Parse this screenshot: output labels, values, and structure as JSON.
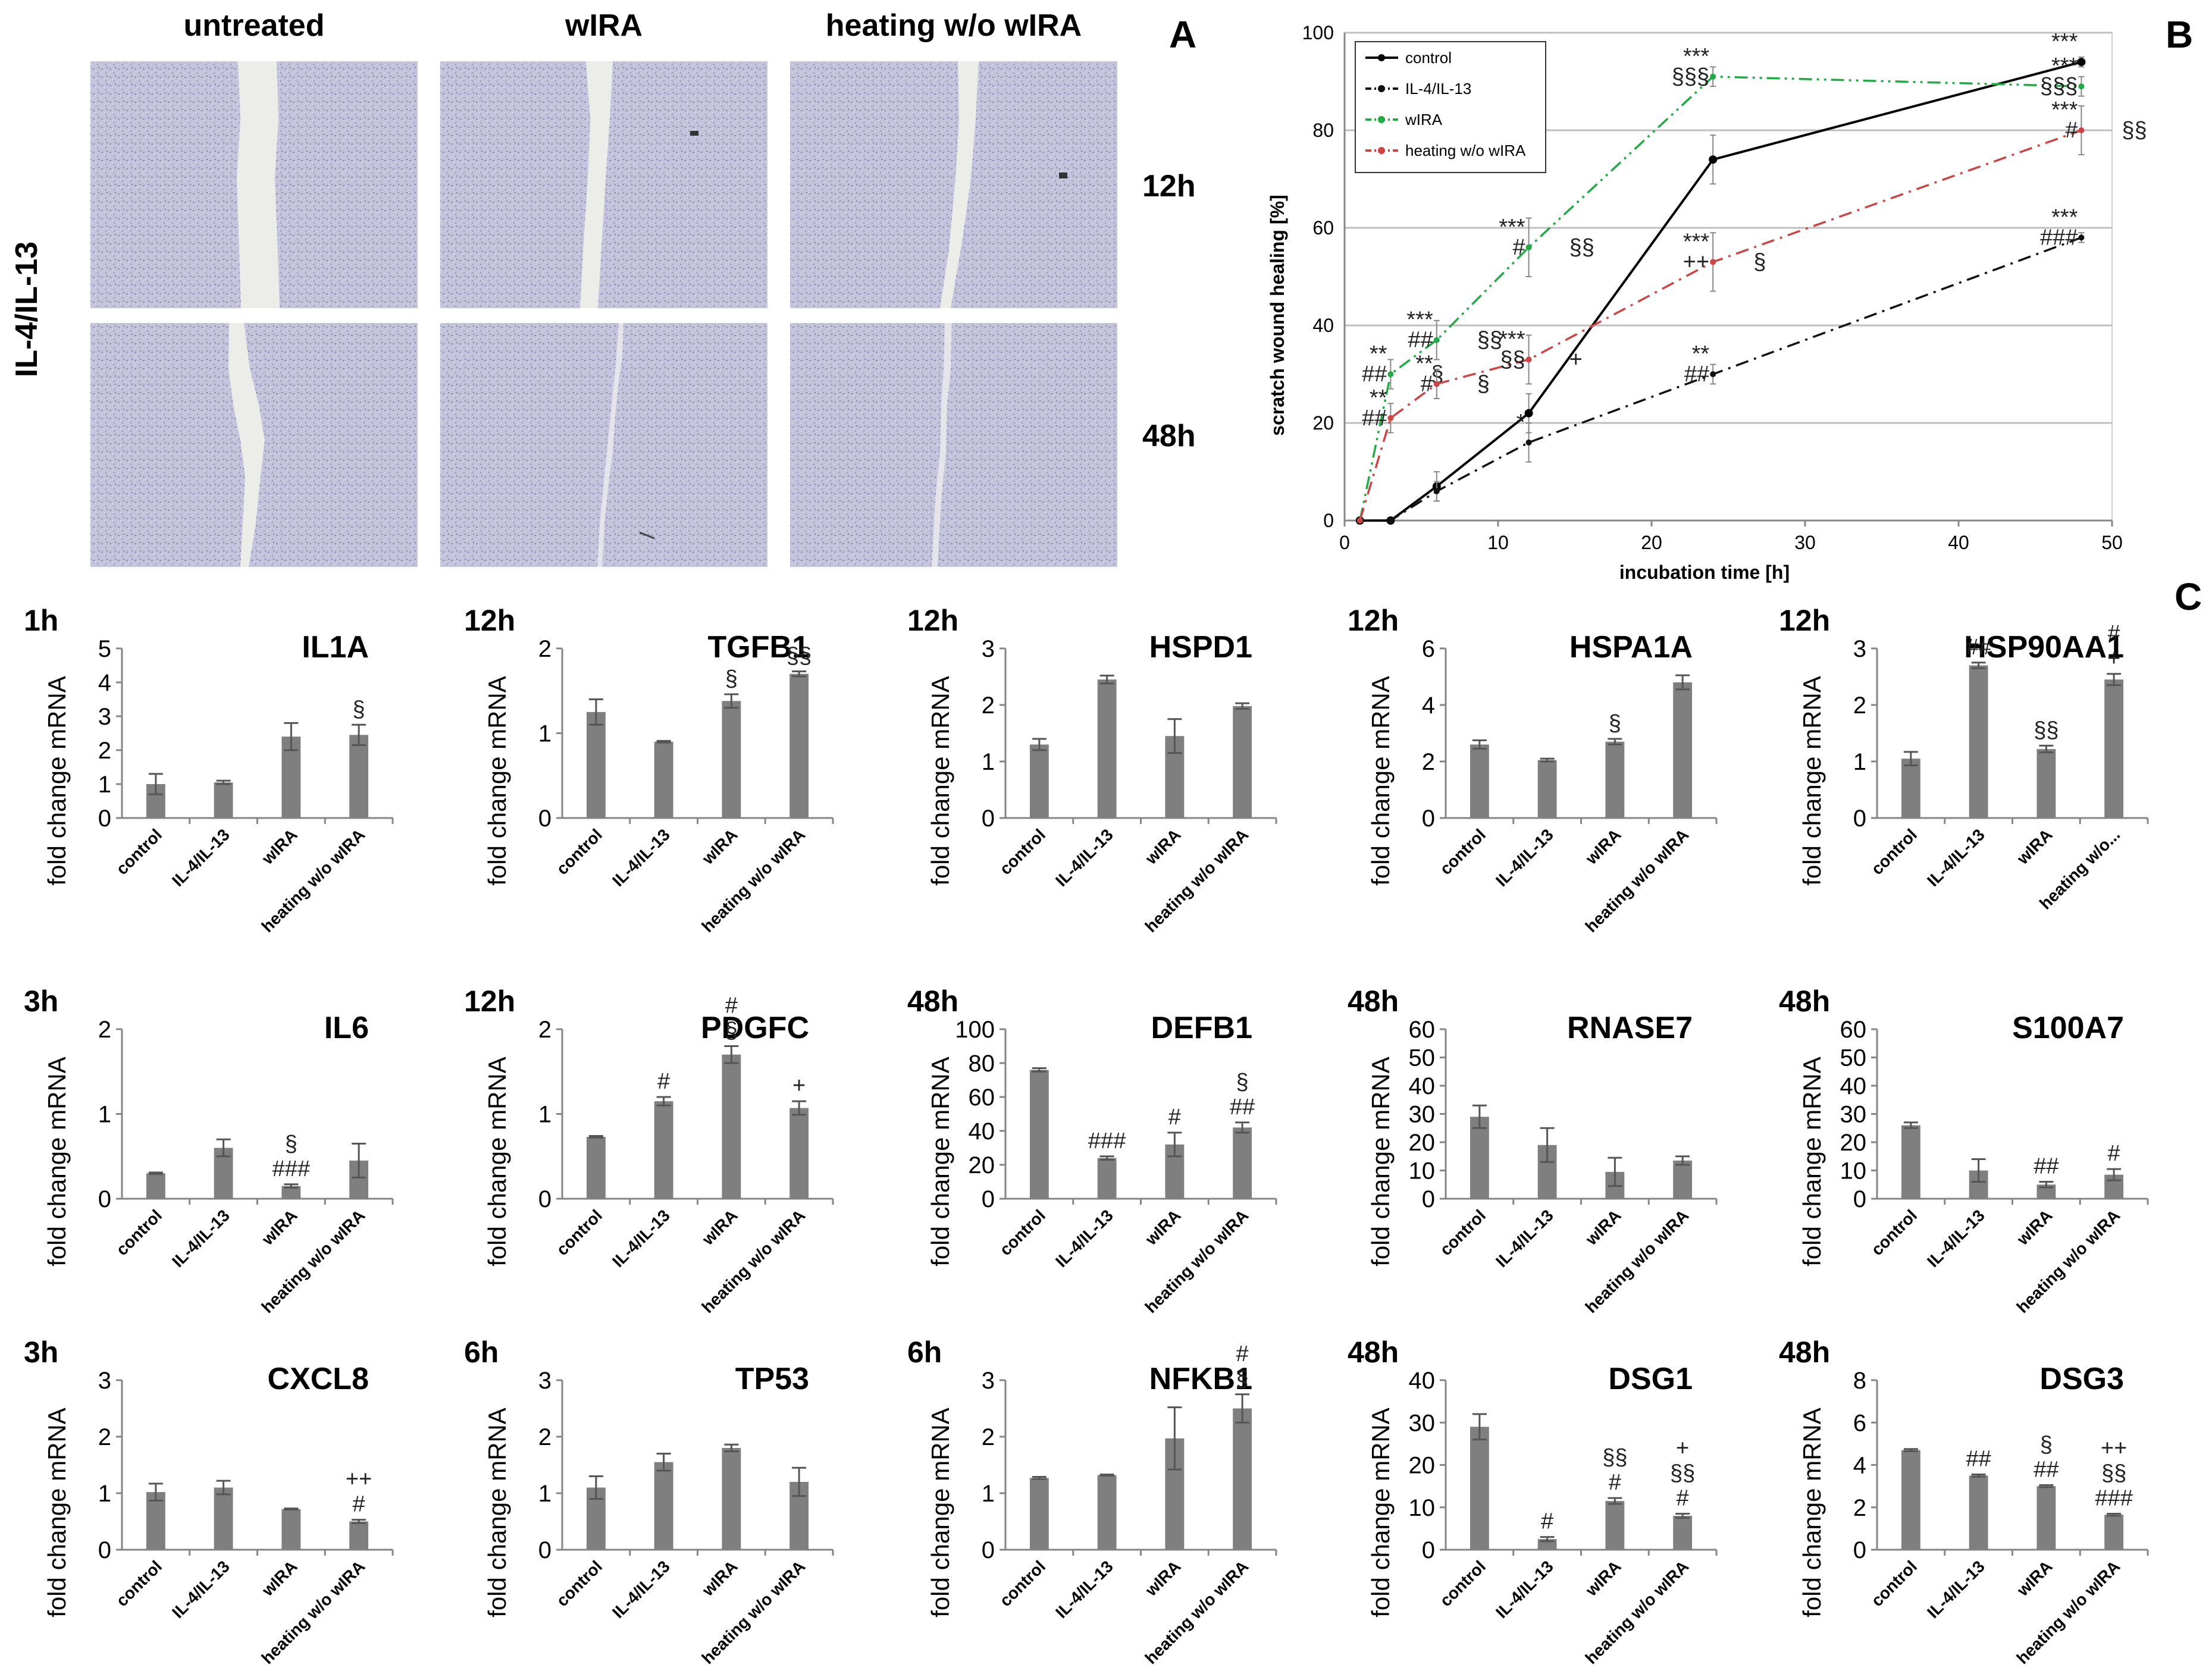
{
  "panel_a": {
    "label": "A",
    "row_title": "IL-4/IL-13",
    "columns": [
      "untreated",
      "wIRA",
      "heating w/o wIRA"
    ],
    "rows": [
      "12h",
      "48h"
    ]
  },
  "chart_data": [
    {
      "panel": "B",
      "type": "line",
      "title": "",
      "xlabel": "incubation time [h]",
      "ylabel": "scratch wound healing [%]",
      "xlim": [
        0,
        50
      ],
      "ylim": [
        0,
        100
      ],
      "xticks": [
        0,
        10,
        20,
        30,
        40,
        50
      ],
      "yticks": [
        0,
        20,
        40,
        60,
        80,
        100
      ],
      "grid": "horizontal",
      "legend": "top-left",
      "series": [
        {
          "name": "control",
          "color": "#000000",
          "dash": "solid",
          "marker": "circle",
          "x": [
            1,
            3,
            6,
            12,
            24,
            48
          ],
          "y": [
            0,
            0,
            7,
            22,
            74,
            94
          ],
          "err": [
            0,
            0,
            3,
            4,
            5,
            1
          ],
          "annotations": [
            [
              "48",
              "***"
            ]
          ]
        },
        {
          "name": "IL-4/IL-13",
          "color": "#111111",
          "dash": "dashdot",
          "marker": "diamond",
          "x": [
            1,
            3,
            6,
            12,
            24,
            48
          ],
          "y": [
            0,
            0,
            6,
            16,
            30,
            58
          ],
          "err": [
            0,
            0,
            2,
            4,
            2,
            1
          ],
          "annotations": [
            [
              "12",
              "*"
            ],
            [
              "24",
              "** ##"
            ],
            [
              "48",
              "*** ###"
            ]
          ]
        },
        {
          "name": "wIRA",
          "color": "#22aa44",
          "dash": "dashdotdot",
          "marker": "diamond",
          "x": [
            1,
            3,
            6,
            12,
            24,
            48
          ],
          "y": [
            0,
            30,
            37,
            56,
            91,
            89
          ],
          "err": [
            0,
            3,
            4,
            6,
            2,
            2
          ],
          "annotations": [
            [
              "3",
              "** ## §"
            ],
            [
              "6",
              "*** ## §§"
            ],
            [
              "12",
              "*** # §§"
            ],
            [
              "24",
              "*** §§§"
            ],
            [
              "48",
              "*** §§§"
            ]
          ]
        },
        {
          "name": "heating w/o wIRA",
          "color": "#cc4444",
          "dash": "dashdot",
          "marker": "diamond",
          "x": [
            1,
            3,
            6,
            12,
            24,
            48
          ],
          "y": [
            0,
            21,
            28,
            33,
            53,
            80
          ],
          "err": [
            0,
            3,
            3,
            5,
            6,
            5
          ],
          "annotations": [
            [
              "3",
              "** ##"
            ],
            [
              "6",
              "** # §"
            ],
            [
              "12",
              "*** §§ +"
            ],
            [
              "24",
              "*** ++ §"
            ],
            [
              "48",
              "*** # §§"
            ]
          ]
        }
      ]
    },
    {
      "type": "bar",
      "panel": "C",
      "time": "1h",
      "gene": "IL1A",
      "ylabel": "fold change mRNA",
      "categories": [
        "control",
        "IL-4/IL-13",
        "wIRA",
        "heating w/o wIRA"
      ],
      "values": [
        1.0,
        1.05,
        2.4,
        2.45
      ],
      "errors": [
        0.3,
        0.05,
        0.4,
        0.3
      ],
      "ylim": [
        0,
        5
      ],
      "yticks": [
        0,
        1,
        2,
        3,
        4,
        5
      ],
      "annotations": [
        "",
        "",
        "",
        "§"
      ]
    },
    {
      "type": "bar",
      "panel": "C",
      "time": "12h",
      "gene": "TGFB1",
      "ylabel": "fold change mRNA",
      "categories": [
        "control",
        "IL-4/IL-13",
        "wIRA",
        "heating w/o wIRA"
      ],
      "values": [
        1.25,
        0.9,
        1.38,
        1.7
      ],
      "errors": [
        0.15,
        0.01,
        0.08,
        0.03
      ],
      "ylim": [
        0,
        2
      ],
      "yticks": [
        0,
        1,
        2
      ],
      "annotations": [
        "",
        "",
        "§",
        "§§"
      ]
    },
    {
      "type": "bar",
      "panel": "C",
      "time": "12h",
      "gene": "HSPD1",
      "ylabel": "fold change mRNA",
      "categories": [
        "control",
        "IL-4/IL-13",
        "wIRA",
        "heating w/o wIRA"
      ],
      "values": [
        1.3,
        2.45,
        1.45,
        1.98
      ],
      "errors": [
        0.1,
        0.07,
        0.3,
        0.05
      ],
      "ylim": [
        0,
        3
      ],
      "yticks": [
        0,
        1,
        2,
        3
      ],
      "annotations": [
        "",
        "",
        "",
        ""
      ]
    },
    {
      "type": "bar",
      "panel": "C",
      "time": "12h",
      "gene": "HSPA1A",
      "ylabel": "fold change mRNA",
      "categories": [
        "control",
        "IL-4/IL-13",
        "wIRA",
        "heating w/o wIRA"
      ],
      "values": [
        2.6,
        2.05,
        2.7,
        4.8
      ],
      "errors": [
        0.15,
        0.05,
        0.1,
        0.25
      ],
      "ylim": [
        0,
        6
      ],
      "yticks": [
        0,
        2,
        4,
        6
      ],
      "annotations": [
        "",
        "",
        "§",
        ""
      ]
    },
    {
      "type": "bar",
      "panel": "C",
      "time": "12h",
      "gene": "HSP90AA1",
      "ylabel": "fold change mRNA",
      "categories": [
        "control",
        "IL-4/IL-13",
        "wIRA",
        "heating w/o..."
      ],
      "values": [
        1.05,
        2.7,
        1.22,
        2.45
      ],
      "errors": [
        0.12,
        0.05,
        0.06,
        0.1
      ],
      "ylim": [
        0,
        3
      ],
      "yticks": [
        0,
        1,
        2,
        3
      ],
      "annotations": [
        "",
        "##",
        "§§",
        "# +"
      ]
    },
    {
      "type": "bar",
      "panel": "C",
      "time": "3h",
      "gene": "IL6",
      "ylabel": "fold change mRNA",
      "categories": [
        "control",
        "IL-4/IL-13",
        "wIRA",
        "heating w/o wIRA"
      ],
      "values": [
        0.3,
        0.6,
        0.15,
        0.45
      ],
      "errors": [
        0.01,
        0.1,
        0.02,
        0.2
      ],
      "ylim": [
        0,
        2
      ],
      "yticks": [
        0,
        1,
        2
      ],
      "annotations": [
        "",
        "",
        "§ ###",
        ""
      ]
    },
    {
      "type": "bar",
      "panel": "C",
      "time": "12h",
      "gene": "PDGFC",
      "ylabel": "fold change mRNA",
      "categories": [
        "control",
        "IL-4/IL-13",
        "wIRA",
        "heating w/o wIRA"
      ],
      "values": [
        0.73,
        1.15,
        1.7,
        1.07
      ],
      "errors": [
        0.01,
        0.05,
        0.1,
        0.08
      ],
      "ylim": [
        0,
        2
      ],
      "yticks": [
        0,
        1,
        2
      ],
      "annotations": [
        "",
        "#",
        "# §",
        "+"
      ]
    },
    {
      "type": "bar",
      "panel": "C",
      "time": "48h",
      "gene": "DEFB1",
      "ylabel": "fold change mRNA",
      "categories": [
        "control",
        "IL-4/IL-13",
        "wIRA",
        "heating w/o wIRA"
      ],
      "values": [
        76,
        24,
        32,
        42
      ],
      "errors": [
        1,
        1,
        7,
        3
      ],
      "ylim": [
        0,
        100
      ],
      "yticks": [
        0,
        20,
        40,
        60,
        80,
        100
      ],
      "annotations": [
        "",
        "###",
        "#",
        "§ ##"
      ]
    },
    {
      "type": "bar",
      "panel": "C",
      "time": "48h",
      "gene": "RNASE7",
      "ylabel": "fold change mRNA",
      "categories": [
        "control",
        "IL-4/IL-13",
        "wIRA",
        "heating w/o wIRA"
      ],
      "values": [
        29,
        19,
        9.5,
        13.5
      ],
      "errors": [
        4,
        6,
        5,
        1.5
      ],
      "ylim": [
        0,
        60
      ],
      "yticks": [
        0,
        10,
        20,
        30,
        40,
        50,
        60
      ],
      "annotations": [
        "",
        "",
        "",
        ""
      ]
    },
    {
      "type": "bar",
      "panel": "C",
      "time": "48h",
      "gene": "S100A7",
      "ylabel": "fold change mRNA",
      "categories": [
        "control",
        "IL-4/IL-13",
        "wIRA",
        "heating w/o wIRA"
      ],
      "values": [
        26,
        10,
        5,
        8.5
      ],
      "errors": [
        1,
        4,
        1,
        2
      ],
      "ylim": [
        0,
        60
      ],
      "yticks": [
        0,
        10,
        20,
        30,
        40,
        50,
        60
      ],
      "annotations": [
        "",
        "",
        "##",
        "#"
      ]
    },
    {
      "type": "bar",
      "panel": "C",
      "time": "3h",
      "gene": "CXCL8",
      "ylabel": "fold change mRNA",
      "categories": [
        "control",
        "IL-4/IL-13",
        "wIRA",
        "heating w/o wIRA"
      ],
      "values": [
        1.02,
        1.1,
        0.72,
        0.5
      ],
      "errors": [
        0.15,
        0.12,
        0.01,
        0.03
      ],
      "ylim": [
        0,
        3
      ],
      "yticks": [
        0,
        1,
        2,
        3
      ],
      "annotations": [
        "",
        "",
        "",
        "++ #"
      ]
    },
    {
      "type": "bar",
      "panel": "C",
      "time": "6h",
      "gene": "TP53",
      "ylabel": "fold change mRNA",
      "categories": [
        "control",
        "IL-4/IL-13",
        "wIRA",
        "heating w/o wIRA"
      ],
      "values": [
        1.1,
        1.55,
        1.8,
        1.2
      ],
      "errors": [
        0.2,
        0.15,
        0.06,
        0.25
      ],
      "ylim": [
        0,
        3
      ],
      "yticks": [
        0,
        1,
        2,
        3
      ],
      "annotations": [
        "",
        "",
        "",
        ""
      ]
    },
    {
      "type": "bar",
      "panel": "C",
      "time": "6h",
      "gene": "NFKB1",
      "ylabel": "fold change mRNA",
      "categories": [
        "control",
        "IL-4/IL-13",
        "wIRA",
        "heating w/o wIRA"
      ],
      "values": [
        1.27,
        1.32,
        1.97,
        2.5
      ],
      "errors": [
        0.02,
        0.01,
        0.55,
        0.25
      ],
      "ylim": [
        0,
        3
      ],
      "yticks": [
        0,
        1,
        2,
        3
      ],
      "annotations": [
        "",
        "",
        "",
        "# §"
      ]
    },
    {
      "type": "bar",
      "panel": "C",
      "time": "48h",
      "gene": "DSG1",
      "ylabel": "fold change mRNA",
      "categories": [
        "control",
        "IL-4/IL-13",
        "wIRA",
        "heating w/o wIRA"
      ],
      "values": [
        29,
        2.5,
        11.5,
        8
      ],
      "errors": [
        3,
        0.5,
        0.7,
        0.5
      ],
      "ylim": [
        0,
        40
      ],
      "yticks": [
        0,
        10,
        20,
        30,
        40
      ],
      "annotations": [
        "",
        "#",
        "§§ #",
        "+ §§ #"
      ]
    },
    {
      "type": "bar",
      "panel": "C",
      "time": "48h",
      "gene": "DSG3",
      "ylabel": "fold change mRNA",
      "categories": [
        "control",
        "IL-4/IL-13",
        "wIRA",
        "heating w/o wIRA"
      ],
      "values": [
        4.7,
        3.5,
        3.0,
        1.65
      ],
      "errors": [
        0.05,
        0.05,
        0.05,
        0.05
      ],
      "ylim": [
        0,
        8
      ],
      "yticks": [
        0,
        2,
        4,
        6,
        8
      ],
      "annotations": [
        "",
        "##",
        "§ ##",
        "++ §§ ###"
      ]
    }
  ],
  "panel_b_label": "B",
  "panel_c_label": "C",
  "colors": {
    "bar": "#7f7f7f",
    "axis": "#868686",
    "grid": "#bfbfbf",
    "micro_bg": "#c8c8de",
    "scratch": "#e9e9e6"
  }
}
